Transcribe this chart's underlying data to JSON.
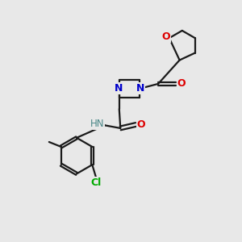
{
  "background_color": "#e8e8e8",
  "bond_color": "#1a1a1a",
  "N_color": "#0000cc",
  "O_color": "#dd0000",
  "Cl_color": "#00aa00",
  "H_color": "#4a8888",
  "figsize": [
    3.0,
    3.0
  ],
  "dpi": 100,
  "xlim": [
    0,
    10
  ],
  "ylim": [
    0,
    10
  ]
}
